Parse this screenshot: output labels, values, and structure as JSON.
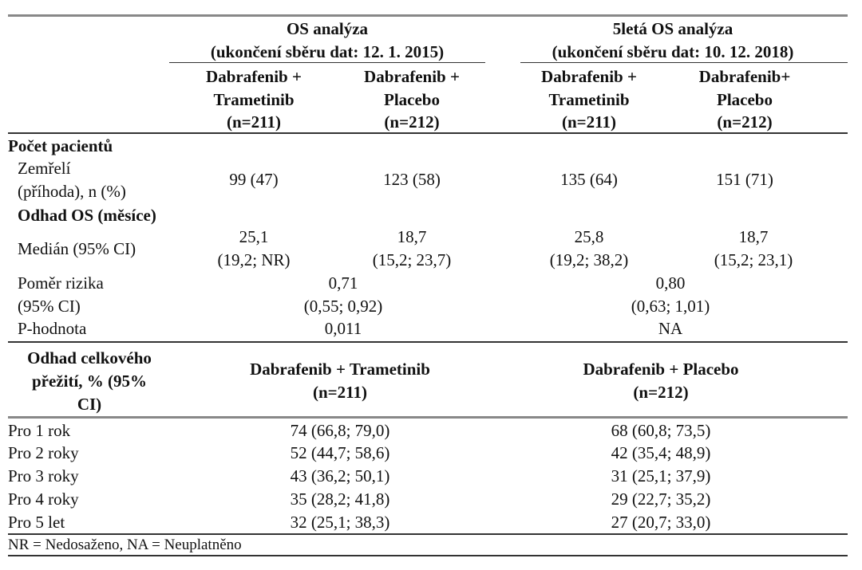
{
  "header": {
    "group1_title": "OS analýza",
    "group1_subtitle": "(ukončení sběru dat: 12. 1. 2015)",
    "group2_title": "5letá OS analýza",
    "group2_subtitle": "(ukončení sběru dat: 10. 12. 2018)",
    "columns": [
      {
        "line1": "Dabrafenib +",
        "line2": "Trametinib",
        "line3": "(n=211)"
      },
      {
        "line1": "Dabrafenib +",
        "line2": "Placebo",
        "line3": "(n=212)"
      },
      {
        "line1": "Dabrafenib +",
        "line2": "Trametinib",
        "line3": "(n=211)"
      },
      {
        "line1": "Dabrafenib+",
        "line2": "Placebo",
        "line3": "(n=212)"
      }
    ]
  },
  "patients": {
    "section_label": "Počet pacientů",
    "died_label_1": "Zemřelí",
    "died_label_2": "(příhoda), n (%)",
    "died_values": [
      "99 (47)",
      "123 (58)",
      "135 (64)",
      "151 (71)"
    ]
  },
  "os_estimate": {
    "section_label": "Odhad OS (měsíce)",
    "median_label": "Medián (95% CI)",
    "median_values": [
      {
        "value": "25,1",
        "ci": "(19,2; NR)"
      },
      {
        "value": "18,7",
        "ci": "(15,2; 23,7)"
      },
      {
        "value": "25,8",
        "ci": "(19,2; 38,2)"
      },
      {
        "value": "18,7",
        "ci": "(15,2; 23,1)"
      }
    ],
    "hr_label_1": "Poměr rizika",
    "hr_label_2": "(95% CI)",
    "hr_values": [
      {
        "value": "0,71",
        "ci": "(0,55; 0,92)"
      },
      {
        "value": "0,80",
        "ci": "(0,63; 1,01)"
      }
    ],
    "p_label": "P-hodnota",
    "p_values": [
      "0,011",
      "NA"
    ]
  },
  "survival": {
    "label_1": "Odhad celkového",
    "label_2": "přežití, % (95%",
    "label_3": "CI)",
    "columns": [
      {
        "line1": "Dabrafenib + Trametinib",
        "line2": "(n=211)"
      },
      {
        "line1": "Dabrafenib + Placebo",
        "line2": "(n=212)"
      }
    ],
    "rows": [
      {
        "label": "Pro 1 rok",
        "values": [
          "74 (66,8; 79,0)",
          "68 (60,8; 73,5)"
        ]
      },
      {
        "label": "Pro 2 roky",
        "values": [
          "52 (44,7; 58,6)",
          "42 (35,4; 48,9)"
        ]
      },
      {
        "label": "Pro 3 roky",
        "values": [
          "43 (36,2; 50,1)",
          "31 (25,1; 37,9)"
        ]
      },
      {
        "label": "Pro 4 roky",
        "values": [
          "35 (28,2; 41,8)",
          "29 (22,7; 35,2)"
        ]
      },
      {
        "label": "Pro 5 let",
        "values": [
          "32 (25,1; 38,3)",
          "27 (20,7; 33,0)"
        ]
      }
    ]
  },
  "footnote": "NR = Nedosaženo, NA = Neuplatněno"
}
